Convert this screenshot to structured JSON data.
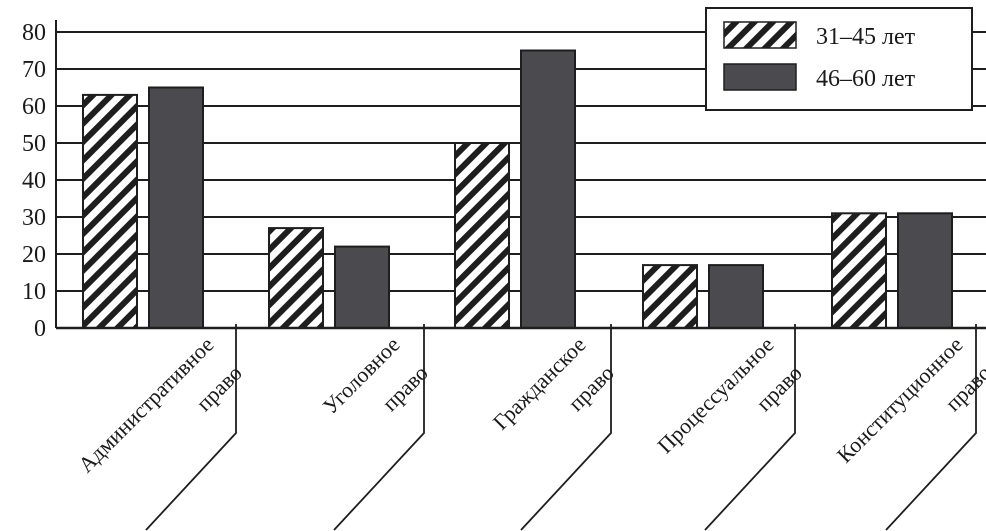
{
  "chart_data": {
    "type": "bar",
    "categories": [
      [
        "Административное",
        "право"
      ],
      [
        "Уголовное",
        "право"
      ],
      [
        "Гражданское",
        "право"
      ],
      [
        "Процессуальное",
        "право"
      ],
      [
        "Конституционное",
        "право"
      ]
    ],
    "series": [
      {
        "name": "31–45 лет",
        "values": [
          63,
          27,
          50,
          17,
          31
        ],
        "pattern": "hatch"
      },
      {
        "name": "46–60 лет",
        "values": [
          65,
          22,
          75,
          17,
          31
        ],
        "pattern": "solid"
      }
    ],
    "title": "",
    "xlabel": "",
    "ylabel": "",
    "ylim": [
      0,
      80
    ],
    "yticks": [
      0,
      10,
      20,
      30,
      40,
      50,
      60,
      70,
      80
    ],
    "grid": "horizontal",
    "legend_position": "top-right",
    "colors": {
      "solid": "#4a4a4f",
      "hatch": "#1e1e1e",
      "axis": "#1e1e1e"
    }
  }
}
